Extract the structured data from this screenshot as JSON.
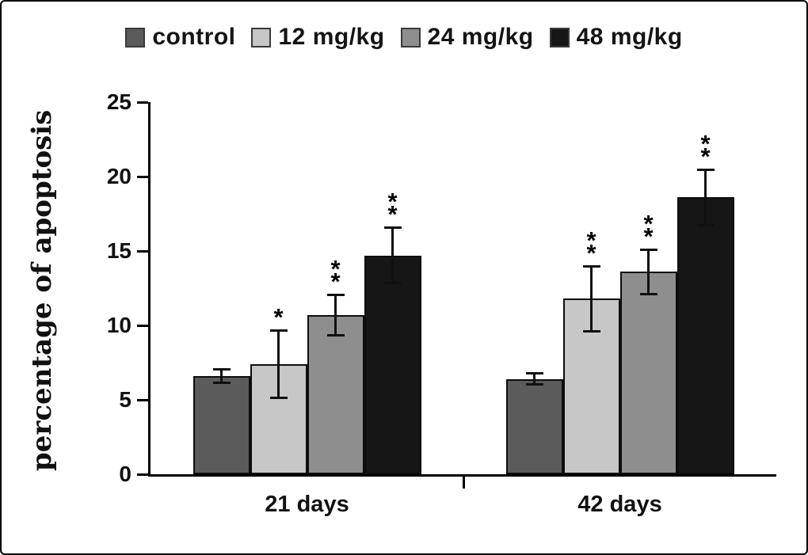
{
  "figure": {
    "background": "#ffffff",
    "border_color": "#000000"
  },
  "chart_data": {
    "type": "bar",
    "title": "",
    "xlabel": "",
    "ylabel": "percentage of apoptosis",
    "ylim": [
      0,
      25
    ],
    "yticks": [
      0,
      5,
      10,
      15,
      20,
      25
    ],
    "categories": [
      "21 days",
      "42 days"
    ],
    "grid": false,
    "legend_position": "top",
    "series": [
      {
        "name": "control",
        "color": "#5b5b5b",
        "values": [
          6.6,
          6.4
        ],
        "errors": [
          0.5,
          0.4
        ],
        "annotations": [
          "",
          ""
        ]
      },
      {
        "name": "12 mg/kg",
        "color": "#c7c7c7",
        "values": [
          7.4,
          11.8
        ],
        "errors": [
          2.3,
          2.2
        ],
        "annotations": [
          "*",
          "**"
        ]
      },
      {
        "name": "24 mg/kg",
        "color": "#8e8e8e",
        "values": [
          10.7,
          13.6
        ],
        "errors": [
          1.4,
          1.5
        ],
        "annotations": [
          "**",
          "**"
        ]
      },
      {
        "name": "48 mg/kg",
        "color": "#161616",
        "values": [
          14.7,
          18.6
        ],
        "errors": [
          1.9,
          1.9
        ],
        "annotations": [
          "**",
          "**"
        ]
      }
    ]
  }
}
